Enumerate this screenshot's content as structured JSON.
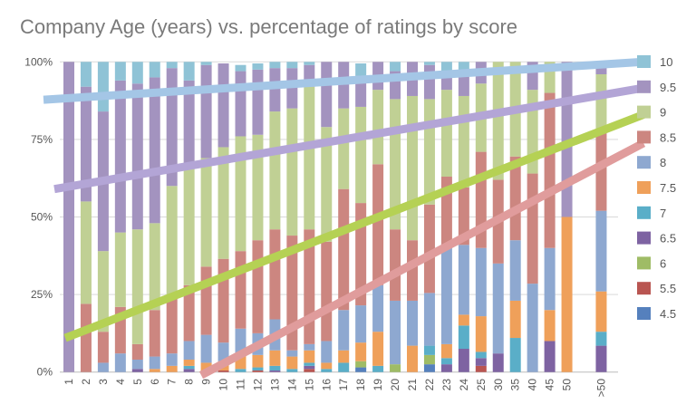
{
  "chart_data": {
    "type": "bar",
    "stacked": true,
    "normalized": true,
    "title": "Company Age (years) vs. percentage of ratings by score",
    "xlabel": "",
    "ylabel": "",
    "ylim": [
      0,
      100
    ],
    "yticks": [
      "0%",
      "25%",
      "50%",
      "75%",
      "100%"
    ],
    "grid": true,
    "legend_position": "right",
    "categories": [
      "1",
      "2",
      "3",
      "4",
      "5",
      "6",
      "7",
      "8",
      "9",
      "10",
      "11",
      "12",
      "13",
      "14",
      "15",
      "16",
      "17",
      "18",
      "19",
      "20",
      "21",
      "22",
      "23",
      "24",
      "25",
      "30",
      "35",
      "40",
      "45",
      "50",
      ">50"
    ],
    "series": [
      {
        "name": "4.5",
        "color": "#5580bd",
        "values": [
          0,
          0,
          0,
          0,
          0,
          0,
          0,
          0,
          0,
          0,
          0,
          0,
          0,
          0,
          0,
          0,
          0,
          1.5,
          0,
          0,
          0,
          2.5,
          0,
          0,
          0,
          0,
          0,
          0,
          0,
          0,
          0
        ]
      },
      {
        "name": "5.5",
        "color": "#b95551",
        "values": [
          0,
          0,
          0,
          0,
          0,
          0,
          0,
          0,
          0,
          0.5,
          0,
          0.5,
          0,
          0,
          1,
          0,
          0,
          0,
          0,
          0,
          0,
          0,
          0,
          0,
          2,
          0,
          0,
          0,
          0,
          0,
          0
        ]
      },
      {
        "name": "6",
        "color": "#9fbc66",
        "values": [
          0,
          0,
          0,
          0,
          0,
          0,
          0,
          0,
          0,
          0,
          0,
          0,
          0,
          0,
          0,
          0,
          0,
          2,
          0,
          2.5,
          0,
          3,
          0,
          0,
          0,
          0,
          0,
          0,
          0,
          0,
          0
        ]
      },
      {
        "name": "6.5",
        "color": "#7e63a2",
        "values": [
          0,
          0,
          0,
          0,
          1,
          0,
          0,
          1,
          0,
          0,
          0,
          0,
          0.5,
          0,
          1,
          0,
          0,
          0,
          0,
          0,
          0,
          0,
          2.5,
          7.5,
          2.5,
          6,
          0,
          0,
          10,
          0,
          8.5
        ]
      },
      {
        "name": "7",
        "color": "#5aaec8",
        "values": [
          0,
          0,
          0,
          0,
          0,
          0,
          0,
          1,
          0,
          0,
          1,
          1,
          1.5,
          1,
          1,
          1,
          3,
          0,
          2,
          0,
          0,
          3,
          2,
          7.5,
          2,
          0,
          11,
          0,
          0,
          0,
          4.5
        ]
      },
      {
        "name": "7.5",
        "color": "#efa05a",
        "values": [
          0,
          0,
          0,
          0,
          0,
          1,
          2,
          2,
          3,
          3,
          5,
          4,
          5,
          4,
          4,
          2,
          4,
          6,
          11,
          0,
          8.5,
          0,
          4.5,
          3.5,
          11.5,
          0,
          12,
          0,
          10,
          50,
          13
        ]
      },
      {
        "name": "8",
        "color": "#8ea8d0",
        "values": [
          0,
          0,
          3,
          6,
          3,
          4,
          4,
          6,
          9,
          6,
          8,
          7,
          10,
          2,
          2,
          7,
          13,
          12,
          15,
          20.5,
          14.5,
          17,
          31,
          22.5,
          22,
          29,
          19.5,
          28.5,
          20,
          0,
          26
        ]
      },
      {
        "name": "8.5",
        "color": "#cc8680",
        "values": [
          0,
          22,
          10,
          15,
          5,
          15,
          18,
          18,
          22,
          27,
          25,
          30,
          29,
          37,
          37,
          32,
          39,
          33,
          39,
          23,
          19.5,
          28.5,
          23,
          18.5,
          31,
          27,
          27,
          35.5,
          50,
          0,
          25
        ]
      },
      {
        "name": "9",
        "color": "#c0d094",
        "values": [
          0,
          33,
          26,
          24,
          37,
          28,
          36,
          38,
          35,
          36,
          37,
          34,
          38,
          41,
          46,
          37,
          26,
          31,
          24,
          42,
          46.5,
          34,
          28,
          29.5,
          22,
          38,
          30.5,
          27,
          10,
          0,
          19
        ]
      },
      {
        "name": "9.5",
        "color": "#a393bf",
        "values": [
          100,
          37,
          45,
          49,
          47,
          47,
          38,
          28,
          30,
          27,
          21,
          21,
          14,
          13,
          7,
          21,
          15,
          10,
          9,
          9,
          11,
          11,
          6,
          8,
          7,
          0,
          0,
          9,
          0,
          50,
          4
        ]
      },
      {
        "name": "10",
        "color": "#8fc3d6",
        "values": [
          0,
          8,
          16,
          6,
          7,
          5,
          2,
          6,
          1,
          0,
          2,
          2,
          2,
          2,
          1,
          0,
          0,
          4,
          0,
          3,
          0,
          1,
          3,
          3,
          0,
          0,
          0,
          0,
          0,
          0,
          0
        ]
      }
    ],
    "trendlines": [
      {
        "series": "10",
        "color": "#a4c6e6",
        "y_start": 87.8,
        "y_end": 100
      },
      {
        "series": "9.5",
        "color": "#b3a5d6",
        "y_start": 59,
        "y_end": 91.6
      },
      {
        "series": "9",
        "color": "#b5d154",
        "y_start": 11,
        "y_end": 83
      },
      {
        "series": "8.5",
        "color": "#e09c9c",
        "y_start": -1,
        "y_end": 73.8
      }
    ],
    "legend": [
      "10",
      "9.5",
      "9",
      "8.5",
      "8",
      "7.5",
      "7",
      "6.5",
      "6",
      "5.5",
      "4.5"
    ]
  }
}
